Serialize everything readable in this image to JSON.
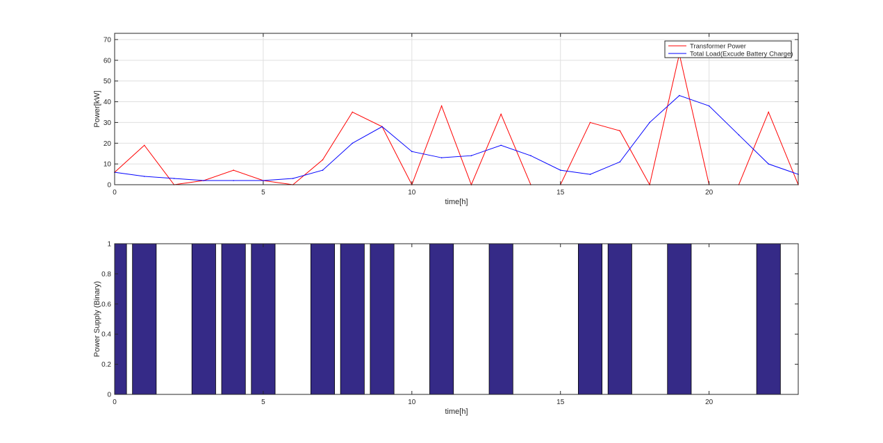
{
  "chart_data": [
    {
      "type": "line",
      "xlabel": "time[h]",
      "ylabel": "Power[kW]",
      "xlim": [
        0,
        23
      ],
      "ylim": [
        0,
        73
      ],
      "xticks": [
        0,
        5,
        10,
        15,
        20
      ],
      "yticks": [
        0,
        10,
        20,
        30,
        40,
        50,
        60,
        70
      ],
      "grid": true,
      "legend_position": "top-right",
      "x": [
        0,
        1,
        2,
        3,
        4,
        5,
        6,
        7,
        8,
        9,
        10,
        11,
        12,
        13,
        14,
        15,
        16,
        17,
        18,
        19,
        20,
        21,
        22,
        23
      ],
      "series": [
        {
          "name": "Transformer Power",
          "color": "#ff0000",
          "values": [
            6,
            19,
            0,
            2,
            7,
            2,
            0,
            12,
            35,
            28,
            0,
            38,
            0,
            34,
            0,
            0,
            30,
            26,
            0,
            63,
            0,
            0,
            35,
            0
          ]
        },
        {
          "name": "Total Load(Excude Battery Charge)",
          "color": "#0000ff",
          "values": [
            6,
            4,
            3,
            2,
            2,
            2,
            3,
            7,
            20,
            28,
            16,
            13,
            14,
            19,
            14,
            7,
            5,
            11,
            30,
            43,
            38,
            24,
            10,
            5
          ]
        }
      ]
    },
    {
      "type": "bar",
      "xlabel": "time[h]",
      "ylabel": "Power Supply (Binary)",
      "xlim": [
        0,
        23
      ],
      "ylim": [
        0,
        1
      ],
      "xticks": [
        0,
        5,
        10,
        15,
        20
      ],
      "yticks": [
        0,
        0.2,
        0.4,
        0.6,
        0.8,
        1
      ],
      "grid": false,
      "bar_color": "#352a87",
      "x": [
        0,
        1,
        2,
        3,
        4,
        5,
        6,
        7,
        8,
        9,
        10,
        11,
        12,
        13,
        14,
        15,
        16,
        17,
        18,
        19,
        20,
        21,
        22,
        23
      ],
      "values": [
        1,
        1,
        0,
        1,
        1,
        1,
        0,
        1,
        1,
        1,
        0,
        1,
        0,
        1,
        0,
        0,
        1,
        1,
        0,
        1,
        0,
        0,
        1,
        0
      ]
    }
  ]
}
